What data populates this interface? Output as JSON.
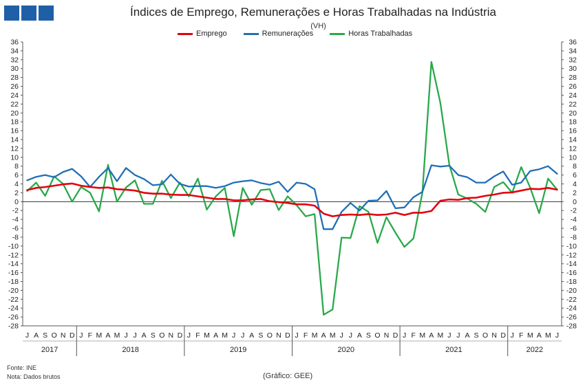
{
  "header": {
    "title": "Índices de Emprego, Remunerações e Horas Trabalhadas na Indústria",
    "subtitle": "(VH)"
  },
  "footer": {
    "source": "Fonte: INE",
    "note": "Nota: Dados brutos",
    "credit": "(Gráfico: GEE)"
  },
  "colors": {
    "emprego": "#e3000f",
    "remuneracoes": "#1f6fb5",
    "horas": "#2aa84a"
  },
  "chart_data": {
    "type": "line",
    "title": "Índices de Emprego, Remunerações e Horas Trabalhadas na Indústria",
    "subtitle": "(VH)",
    "ylim": [
      -28,
      36
    ],
    "y_ticks": [
      36,
      34,
      32,
      30,
      28,
      26,
      24,
      22,
      20,
      18,
      16,
      14,
      12,
      10,
      8,
      6,
      4,
      2,
      0,
      -2,
      -4,
      -6,
      -8,
      -10,
      -12,
      -14,
      -16,
      -18,
      -20,
      -22,
      -24,
      -26,
      -28
    ],
    "secondary_axis": true,
    "grid": false,
    "legend_position": "top",
    "x": [
      "J",
      "A",
      "S",
      "O",
      "N",
      "D",
      "J",
      "F",
      "M",
      "A",
      "M",
      "J",
      "J",
      "A",
      "S",
      "O",
      "N",
      "D",
      "J",
      "F",
      "M",
      "A",
      "M",
      "J",
      "J",
      "A",
      "S",
      "O",
      "N",
      "D",
      "J",
      "F",
      "M",
      "A",
      "M",
      "J",
      "J",
      "A",
      "S",
      "O",
      "N",
      "D",
      "J",
      "F",
      "M",
      "A",
      "M",
      "J",
      "J",
      "A",
      "S",
      "O",
      "N",
      "D",
      "J",
      "F",
      "M",
      "A",
      "M",
      "J"
    ],
    "years": [
      {
        "label": "2017",
        "start": 0,
        "end": 5
      },
      {
        "label": "2018",
        "start": 6,
        "end": 17
      },
      {
        "label": "2019",
        "start": 18,
        "end": 29
      },
      {
        "label": "2020",
        "start": 30,
        "end": 41
      },
      {
        "label": "2021",
        "start": 42,
        "end": 53
      },
      {
        "label": "2022",
        "start": 54,
        "end": 59
      }
    ],
    "series": [
      {
        "name": "Emprego",
        "color": "#e3000f",
        "values": [
          2.6,
          3.1,
          3.3,
          3.6,
          3.9,
          4.1,
          3.6,
          3.3,
          3.1,
          3.2,
          2.8,
          2.7,
          2.5,
          2.0,
          1.8,
          1.8,
          1.6,
          1.5,
          1.5,
          1.2,
          0.9,
          0.6,
          0.6,
          0.3,
          0.3,
          0.5,
          0.6,
          0.1,
          -0.1,
          -0.3,
          -0.6,
          -0.6,
          -0.9,
          -2.7,
          -3.3,
          -3.0,
          -2.9,
          -3.0,
          -2.8,
          -3.0,
          -2.9,
          -2.5,
          -3.0,
          -2.5,
          -2.5,
          -2.1,
          0.2,
          0.5,
          0.4,
          0.8,
          0.9,
          1.3,
          1.6,
          2.0,
          2.1,
          2.5,
          2.9,
          2.8,
          3.1,
          2.7
        ]
      },
      {
        "name": "Remunerações",
        "color": "#1f6fb5",
        "values": [
          4.8,
          5.6,
          6.0,
          5.5,
          6.7,
          7.4,
          5.7,
          3.3,
          5.6,
          7.6,
          4.6,
          7.6,
          6.0,
          5.1,
          3.7,
          3.9,
          6.1,
          4.0,
          3.4,
          3.5,
          3.5,
          3.1,
          3.5,
          4.3,
          4.6,
          4.8,
          4.2,
          3.8,
          4.5,
          2.2,
          4.3,
          4.0,
          2.8,
          -6.2,
          -6.2,
          -2.3,
          -0.3,
          -2.0,
          0.2,
          0.3,
          2.4,
          -1.5,
          -1.3,
          1.0,
          2.2,
          8.2,
          7.9,
          8.1,
          6.0,
          5.5,
          4.3,
          4.3,
          5.7,
          6.8,
          3.8,
          4.3,
          6.9,
          7.3,
          8.0,
          6.3
        ]
      },
      {
        "name": "Horas Trabalhadas",
        "color": "#2aa84a",
        "values": [
          2.4,
          4.3,
          1.3,
          5.7,
          4.0,
          0.0,
          3.3,
          2.0,
          -2.2,
          8.3,
          0.0,
          3.2,
          4.8,
          -0.5,
          -0.5,
          4.7,
          0.8,
          4.3,
          1.2,
          5.2,
          -1.8,
          1.2,
          3.1,
          -7.8,
          3.1,
          -0.7,
          2.6,
          2.8,
          -1.9,
          1.2,
          -0.8,
          -3.3,
          -2.8,
          -25.5,
          -24.3,
          -8.1,
          -8.2,
          -1.0,
          -2.3,
          -9.3,
          -3.5,
          -7.0,
          -10.2,
          -8.3,
          2.0,
          31.5,
          22.3,
          8.3,
          1.6,
          0.7,
          -0.5,
          -2.3,
          3.3,
          4.4,
          2.0,
          7.8,
          3.2,
          -2.6,
          5.2,
          2.7
        ]
      }
    ]
  }
}
